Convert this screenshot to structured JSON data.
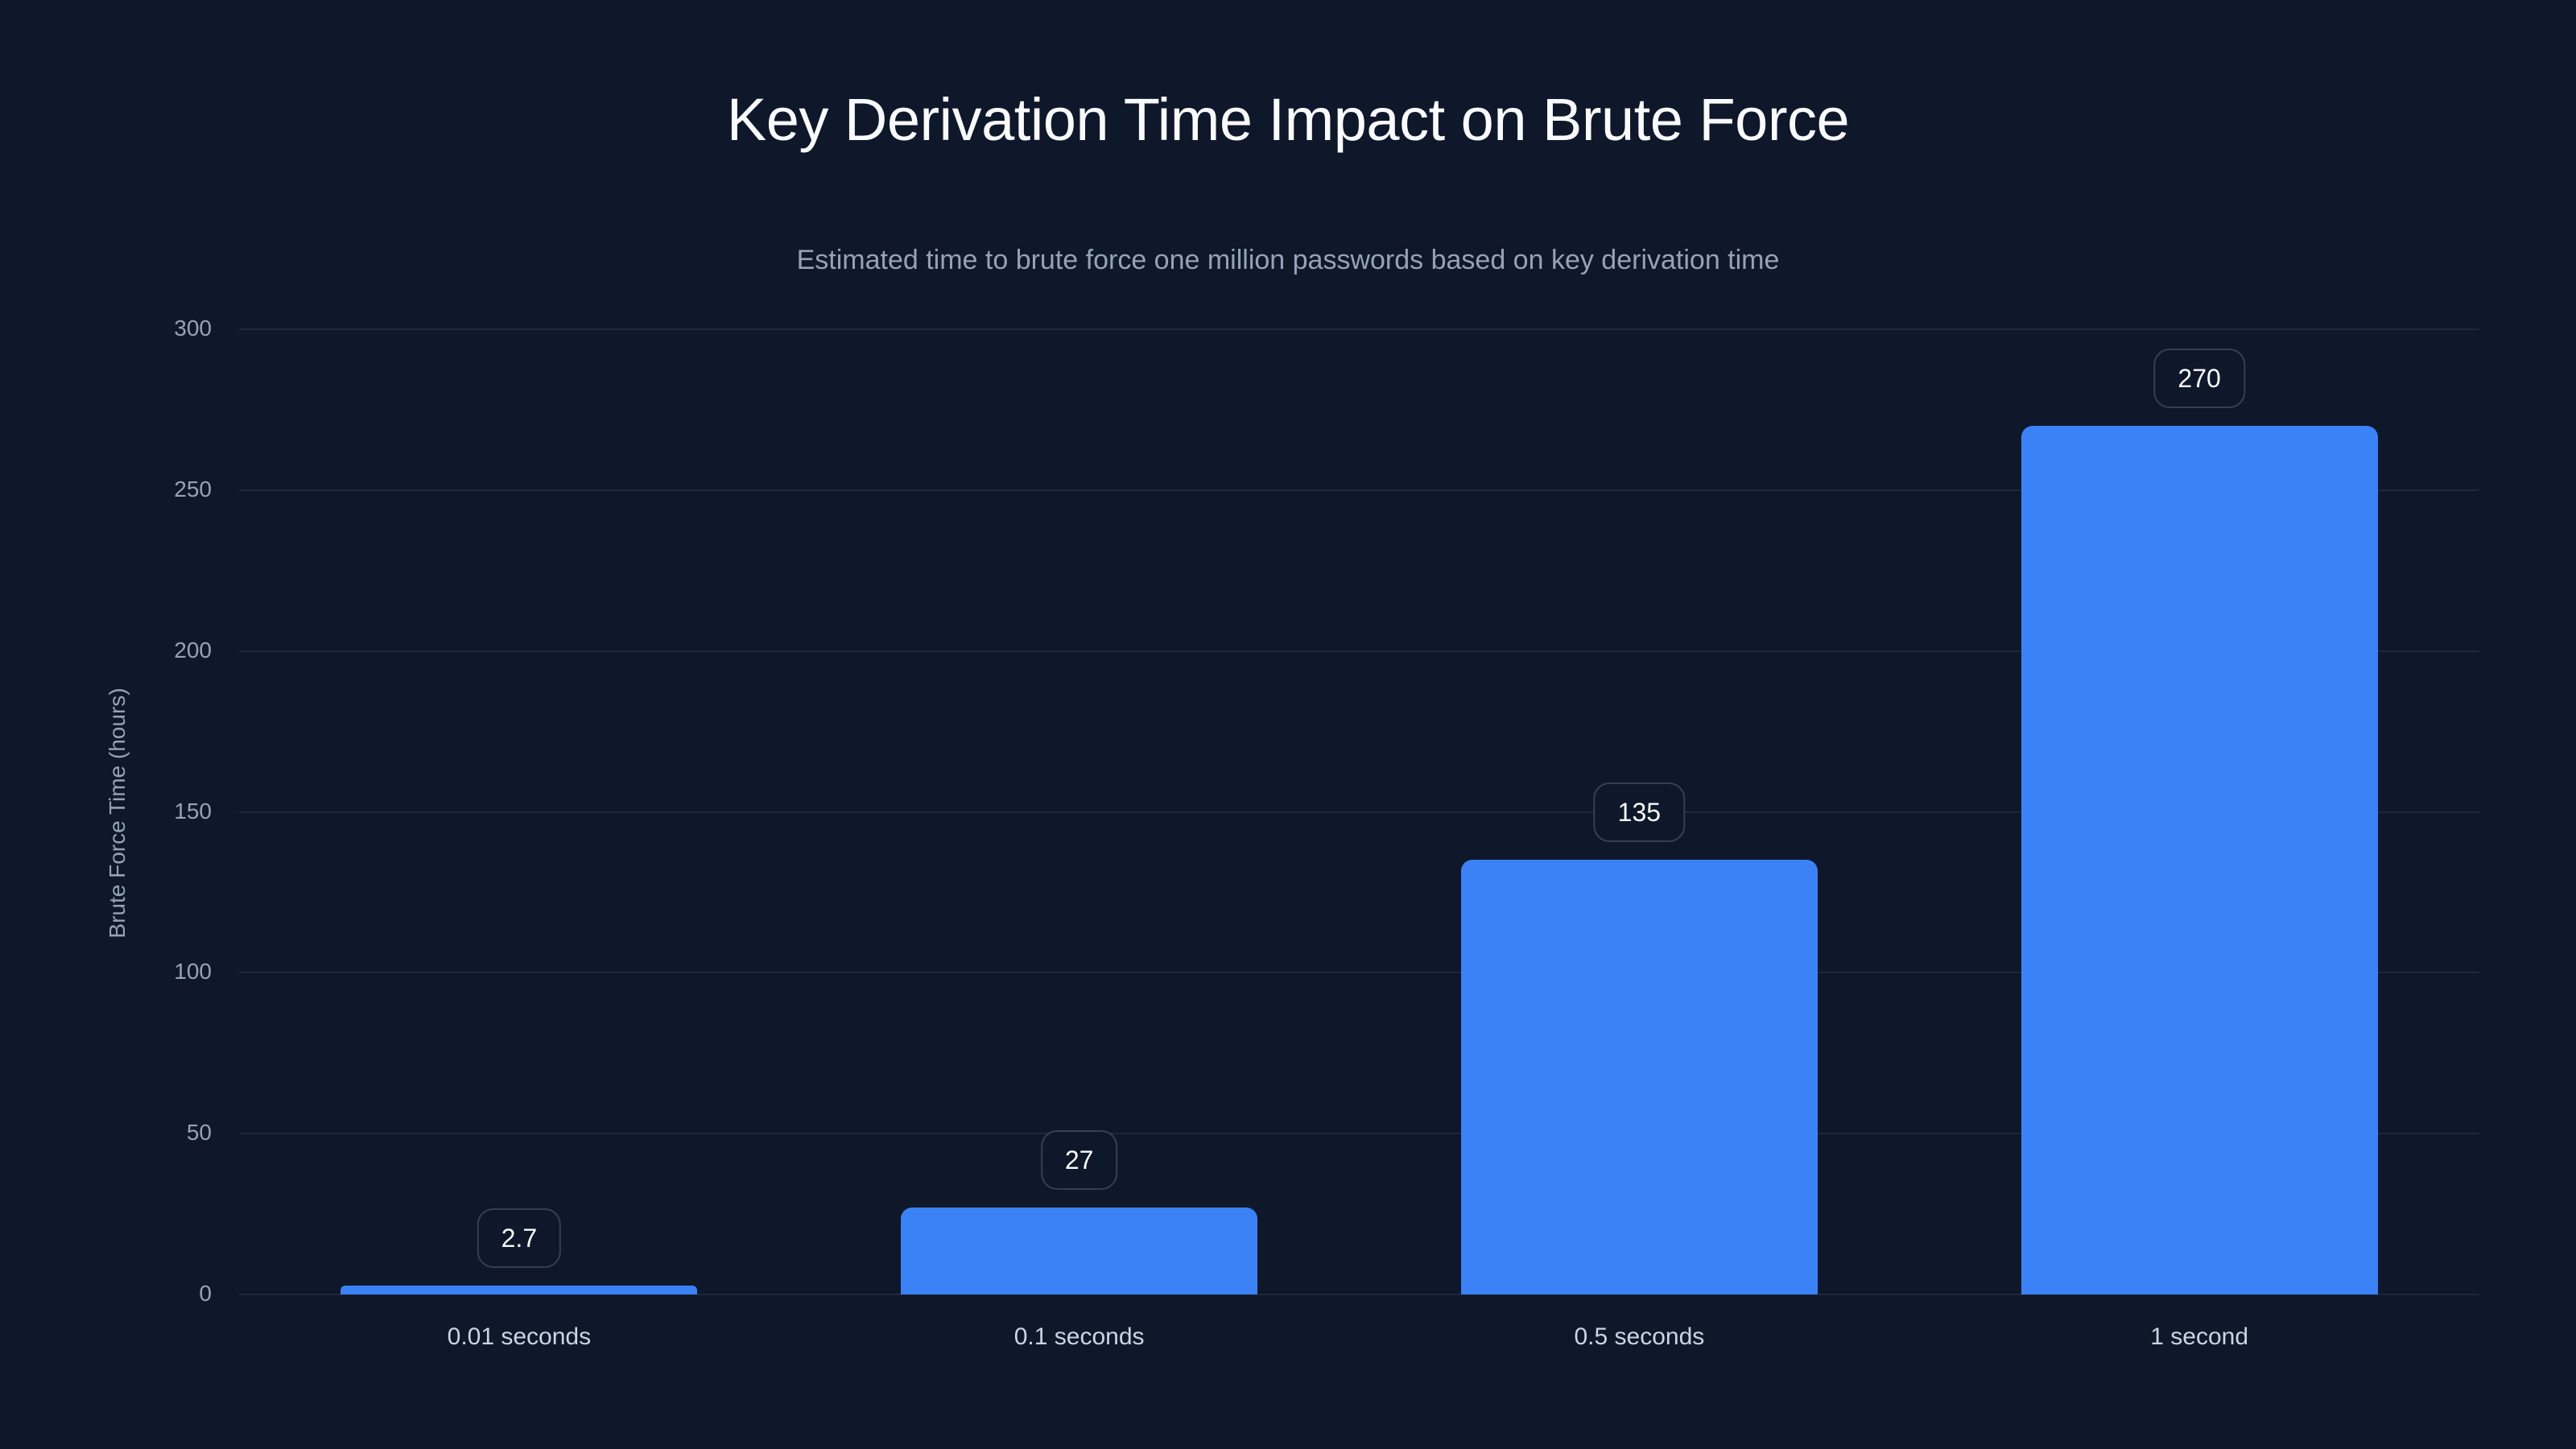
{
  "header": {
    "title": "Key Derivation Time Impact on Brute Force",
    "subtitle": "Estimated time to brute force one million passwords based on key derivation time"
  },
  "colors": {
    "background": "#0f172a",
    "bar": "#3b82f6",
    "grid": "#1e293b",
    "label_box_border": "#334155",
    "title": "#f8fafc",
    "muted_text": "#94a3b8",
    "tick_text": "#cbd5e1"
  },
  "chart_data": {
    "type": "bar",
    "title": "Key Derivation Time Impact on Brute Force",
    "subtitle": "Estimated time to brute force one million passwords based on key derivation time",
    "xlabel": "",
    "ylabel": "Brute Force Time (hours)",
    "categories": [
      "0.01 seconds",
      "0.1 seconds",
      "0.5 seconds",
      "1 second"
    ],
    "values": [
      2.7,
      27,
      135,
      270
    ],
    "value_labels": [
      "2.7",
      "27",
      "135",
      "270"
    ],
    "ylim": [
      0,
      300
    ],
    "yticks": [
      0,
      50,
      100,
      150,
      200,
      250,
      300
    ],
    "ytick_labels": [
      "0",
      "50",
      "100",
      "150",
      "200",
      "250",
      "300"
    ],
    "grid": true,
    "legend": null
  }
}
